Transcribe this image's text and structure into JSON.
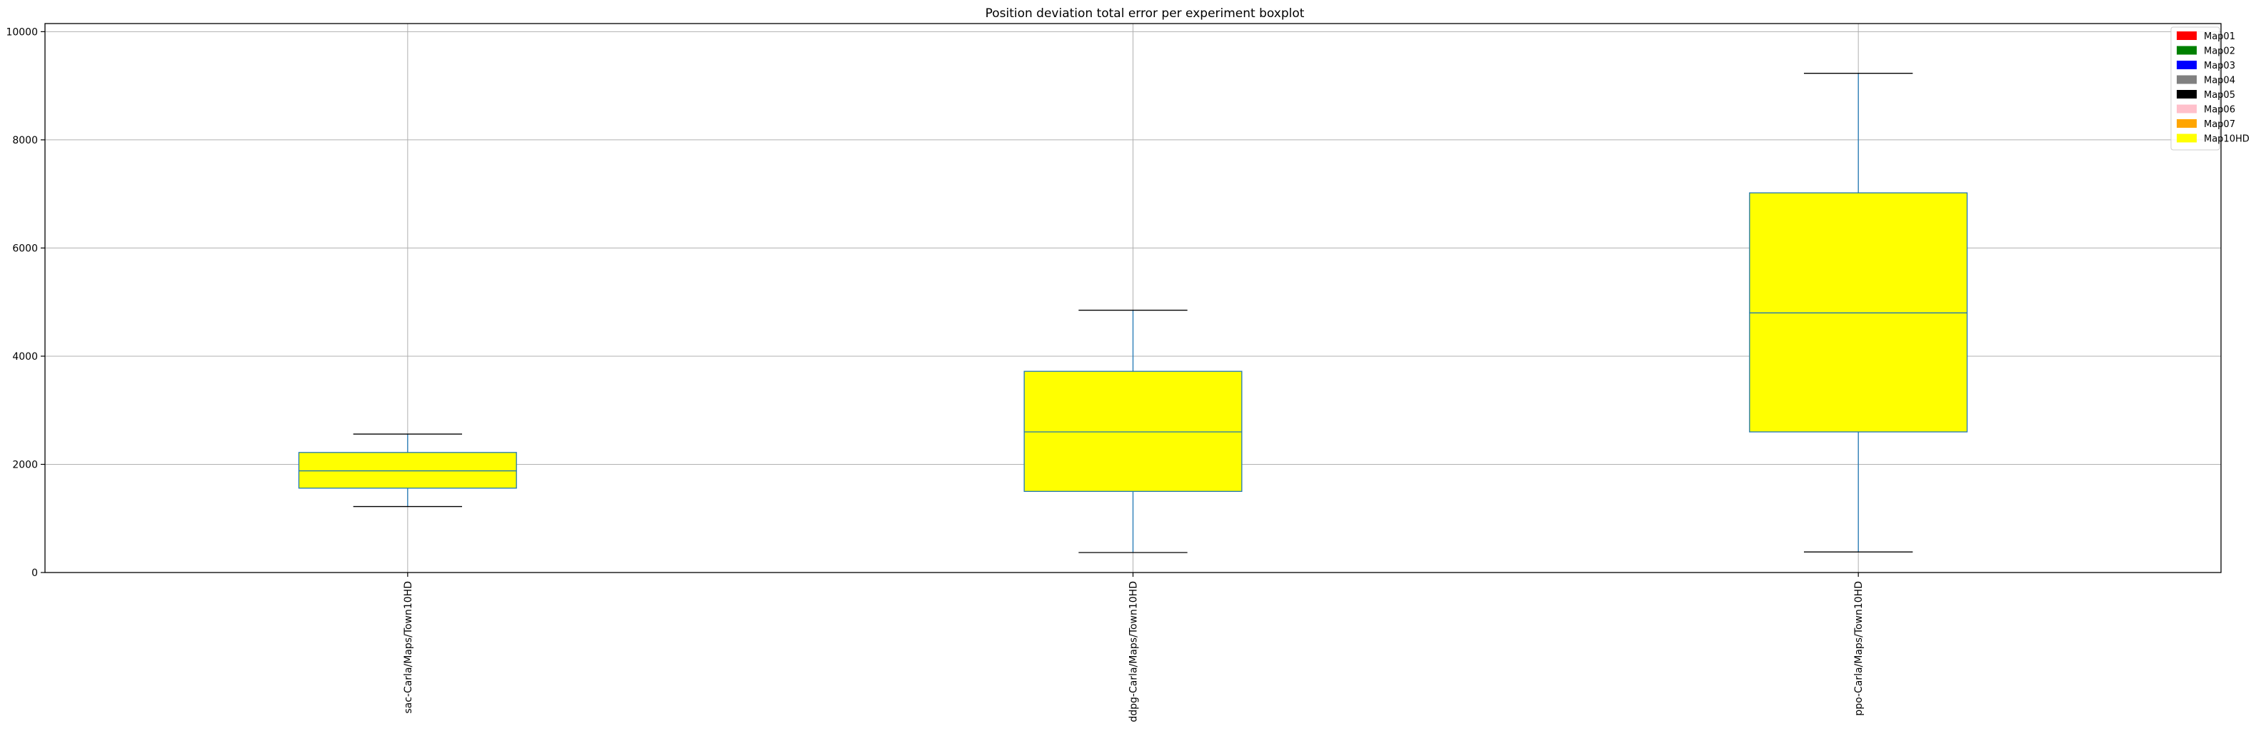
{
  "chart_data": {
    "type": "boxplot",
    "title": "Position deviation total error per experiment boxplot",
    "xlabel": "",
    "ylabel": "",
    "ylim": [
      0,
      10150
    ],
    "yticks": [
      0,
      2000,
      4000,
      6000,
      8000,
      10000
    ],
    "grid": true,
    "legend_position": "top-right",
    "box_fill": "#ffff00",
    "box_edge": "#1f77b4",
    "whisker_color": "#1f77b4",
    "cap_color": "#000000",
    "categories": [
      "sac-Carla/Maps/Town10HD",
      "ddpg-Carla/Maps/Town10HD",
      "ppo-Carla/Maps/Town10HD"
    ],
    "boxes": [
      {
        "category": "sac-Carla/Maps/Town10HD",
        "whisker_low": 1220,
        "q1": 1560,
        "median": 1880,
        "q3": 2220,
        "whisker_high": 2560
      },
      {
        "category": "ddpg-Carla/Maps/Town10HD",
        "whisker_low": 370,
        "q1": 1500,
        "median": 2600,
        "q3": 3720,
        "whisker_high": 4850
      },
      {
        "category": "ppo-Carla/Maps/Town10HD",
        "whisker_low": 380,
        "q1": 2600,
        "median": 4800,
        "q3": 7020,
        "whisker_high": 9230
      }
    ],
    "legend": [
      {
        "label": "Map01",
        "color": "#ff0000"
      },
      {
        "label": "Map02",
        "color": "#008000"
      },
      {
        "label": "Map03",
        "color": "#0000ff"
      },
      {
        "label": "Map04",
        "color": "#808080"
      },
      {
        "label": "Map05",
        "color": "#000000"
      },
      {
        "label": "Map06",
        "color": "#ffc0cb"
      },
      {
        "label": "Map07",
        "color": "#ffa500"
      },
      {
        "label": "Map10HD",
        "color": "#ffff00"
      }
    ]
  }
}
